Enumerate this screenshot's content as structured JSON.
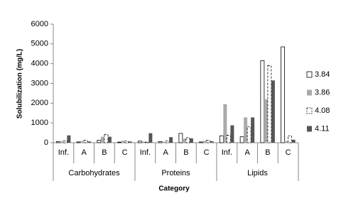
{
  "chart_data": {
    "type": "bar",
    "y_label": "Solubilization  (mg/L)",
    "x_label": "Category",
    "categories": [
      "Inf.",
      "A",
      "B",
      "C",
      "Inf.",
      "A",
      "B",
      "C",
      "Inf.",
      "A",
      "B",
      "C"
    ],
    "groups": [
      "Carbohydrates",
      "Proteins",
      "Lipids"
    ],
    "series": [
      {
        "name": "3.84",
        "color": "#ffffff",
        "values": [
          50,
          40,
          120,
          30,
          80,
          60,
          470,
          40,
          350,
          300,
          4150,
          4850
        ]
      },
      {
        "name": "3.86",
        "color": "#aaaaaa",
        "values": [
          80,
          80,
          300,
          100,
          60,
          50,
          200,
          90,
          1950,
          1280,
          2200,
          80
        ]
      },
      {
        "name": "4.08",
        "color": "#ffffff",
        "values": [
          100,
          120,
          420,
          80,
          30,
          90,
          250,
          120,
          380,
          800,
          3900,
          350
        ]
      },
      {
        "name": "4.11",
        "color": "#555555",
        "values": [
          370,
          60,
          300,
          60,
          480,
          280,
          220,
          70,
          880,
          1280,
          3150,
          150
        ]
      }
    ],
    "ylim": [
      0,
      6000
    ],
    "yticks": [
      0,
      1000,
      2000,
      3000,
      4000,
      5000,
      6000
    ],
    "legend": "right"
  }
}
